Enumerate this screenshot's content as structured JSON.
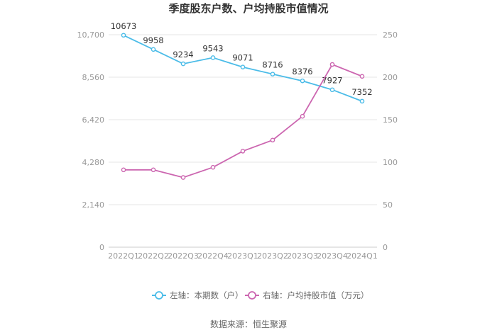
{
  "chart_data": {
    "type": "line",
    "title": "季度股东户数、户均持股市值情况",
    "categories": [
      "2022Q1",
      "2022Q2",
      "2022Q3",
      "2022Q4",
      "2023Q1",
      "2023Q2",
      "2023Q3",
      "2023Q4",
      "2024Q1"
    ],
    "series": [
      {
        "name": "左轴：本期数（户）",
        "axis": "left",
        "color": "#4bbce8",
        "values": [
          10673,
          9958,
          9234,
          9543,
          9071,
          8716,
          8376,
          7927,
          7352
        ],
        "labels": [
          "10673",
          "9958",
          "9234",
          "9543",
          "9071",
          "8716",
          "8376",
          "7927",
          "7352"
        ]
      },
      {
        "name": "右轴：户均持股市值（万元）",
        "axis": "right",
        "color": "#cc66b0",
        "values": [
          91,
          91,
          82,
          94,
          113,
          126,
          154,
          215,
          201
        ]
      }
    ],
    "y_left": {
      "range": [
        0,
        10700
      ],
      "ticks": [
        0,
        2140,
        4280,
        6420,
        8560,
        10700
      ],
      "tick_labels": [
        "0",
        "2,140",
        "4,280",
        "6,420",
        "8,560",
        "10,700"
      ]
    },
    "y_right": {
      "range": [
        0,
        250
      ],
      "ticks": [
        0,
        50,
        100,
        150,
        200,
        250
      ],
      "tick_labels": [
        "0",
        "50",
        "100",
        "150",
        "200",
        "250"
      ]
    },
    "grid": true,
    "legend_position": "bottom"
  },
  "source": "数据来源：恒生聚源"
}
